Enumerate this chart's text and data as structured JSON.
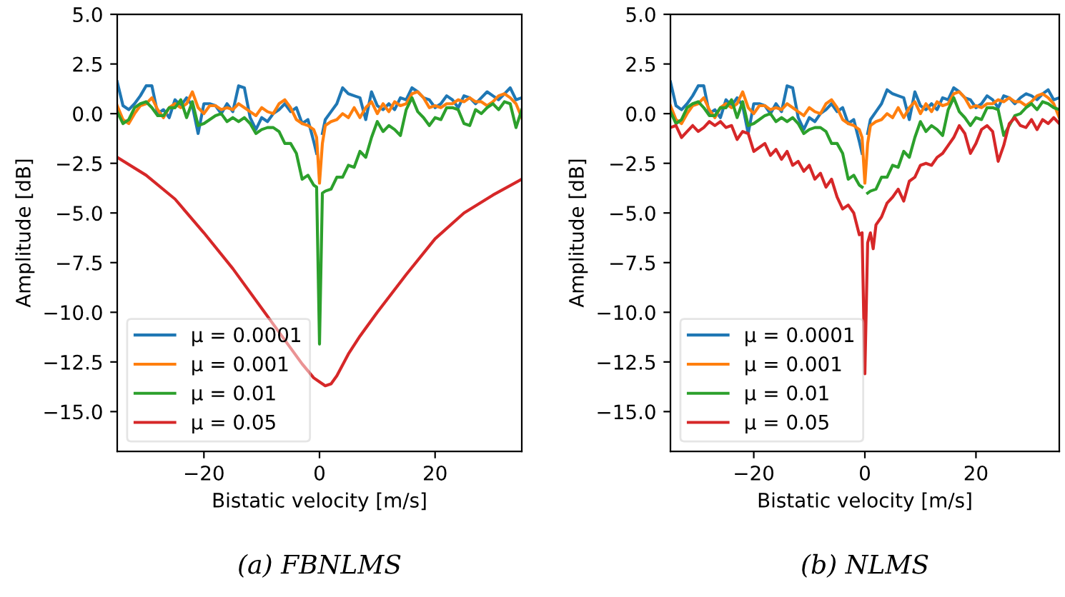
{
  "chart_data": [
    {
      "type": "line",
      "xlabel": "Bistatic velocity [m/s]",
      "ylabel": "Amplitude [dB]",
      "xlim": [
        -35,
        35
      ],
      "ylim": [
        -17,
        5
      ],
      "xticks": [
        {
          "value": -20,
          "label": "−20"
        },
        0,
        20
      ],
      "yticks": [
        {
          "value": -15,
          "label": "−15.0"
        },
        {
          "value": -12.5,
          "label": "−12.5"
        },
        {
          "value": -10,
          "label": "−10.0"
        },
        {
          "value": -7.5,
          "label": "−7.5"
        },
        {
          "value": -5,
          "label": "−5.0"
        },
        {
          "value": -2.5,
          "label": "−2.5"
        },
        {
          "value": 0,
          "label": "0.0"
        },
        {
          "value": 2.5,
          "label": "2.5"
        },
        {
          "value": 5,
          "label": "5.0"
        }
      ],
      "grid": false,
      "legend": "bottom left",
      "annotations": [
        "(a) FBNLMS"
      ],
      "series": [
        {
          "name": "μ = 0.0001",
          "color": "#1f77b4",
          "x": [
            -35,
            -34,
            -33,
            -32,
            -31,
            -30,
            -29,
            -28,
            -27,
            -26,
            -25,
            -24,
            -23,
            -22,
            -21,
            -20,
            -19,
            -18,
            -17,
            -16,
            -15,
            -14,
            -13,
            -12,
            -11,
            -10,
            -9,
            -8,
            -7,
            -6,
            -5,
            -4,
            -3,
            -2,
            -1,
            -0.5,
            0,
            0.5,
            1,
            2,
            3,
            4,
            5,
            6,
            7,
            8,
            9,
            10,
            11,
            12,
            13,
            14,
            15,
            16,
            17,
            18,
            19,
            20,
            21,
            22,
            23,
            24,
            25,
            26,
            27,
            28,
            29,
            30,
            31,
            32,
            33,
            34,
            35
          ],
          "values": [
            1.6,
            0.4,
            0.2,
            0.5,
            0.9,
            1.4,
            1.4,
            0,
            0.2,
            -0.2,
            0.7,
            0.4,
            0.8,
            0.4,
            -1.0,
            0.5,
            0.5,
            0.4,
            0,
            0.5,
            0.1,
            1.4,
            1.3,
            -0.2,
            -0.8,
            -0.2,
            -0.4,
            0,
            0.2,
            0.5,
            0.1,
            0.3,
            -0.5,
            -0.3,
            -1.4,
            -2.0,
            null,
            -1.0,
            -0.3,
            0.1,
            0.5,
            1.3,
            1.0,
            0.9,
            0.8,
            -0.3,
            1.1,
            0.4,
            0.2,
            0.5,
            0.2,
            0.8,
            0.7,
            1.3,
            1.1,
            0.8,
            0.7,
            0.3,
            0.5,
            0.9,
            0.7,
            0.3,
            0.9,
            0.8,
            0.5,
            0.8,
            1.1,
            0.9,
            0.7,
            1.0,
            1.3,
            0.7,
            0.8
          ]
        },
        {
          "name": "μ = 0.001",
          "color": "#ff7f0e",
          "x": [
            -35,
            -34,
            -33,
            -32,
            -31,
            -30,
            -29,
            -28,
            -27,
            -26,
            -25,
            -24,
            -23,
            -22,
            -21,
            -20,
            -19,
            -18,
            -17,
            -16,
            -15,
            -14,
            -13,
            -12,
            -11,
            -10,
            -9,
            -8,
            -7,
            -6,
            -5,
            -4,
            -3,
            -2,
            -1,
            -0.5,
            0,
            0.5,
            1,
            2,
            3,
            4,
            5,
            6,
            7,
            8,
            9,
            10,
            11,
            12,
            13,
            14,
            15,
            16,
            17,
            18,
            19,
            20,
            21,
            22,
            23,
            24,
            25,
            26,
            27,
            28,
            29,
            30,
            31,
            32,
            33,
            34,
            35
          ],
          "values": [
            0.4,
            -0.3,
            -0.5,
            0,
            0.4,
            0.5,
            0.8,
            0.2,
            -0.2,
            0.3,
            0.5,
            0.3,
            0.5,
            1.1,
            0.3,
            0,
            0.4,
            0.4,
            0.2,
            0.3,
            0.2,
            0.5,
            0.3,
            0.1,
            -0.1,
            0.3,
            0.1,
            0,
            0.5,
            0.7,
            0.3,
            -0.3,
            -0.5,
            -0.6,
            -0.8,
            -1.2,
            -3.5,
            -1.5,
            -0.6,
            -0.4,
            -0.3,
            0,
            -0.2,
            0.3,
            -0.2,
            0.3,
            0.6,
            0,
            0.5,
            0.1,
            0.6,
            0.4,
            0.5,
            1.0,
            1.1,
            0.8,
            0.3,
            0.4,
            0.3,
            0.5,
            0.5,
            0.7,
            0.6,
            0.8,
            0.6,
            0.6,
            0.4,
            0.6,
            0.9,
            1.0,
            0.8,
            0.5,
            -0.2
          ]
        },
        {
          "name": "μ = 0.01",
          "color": "#2ca02c",
          "x": [
            -35,
            -34,
            -33,
            -32,
            -31,
            -30,
            -29,
            -28,
            -27,
            -26,
            -25,
            -24,
            -23,
            -22,
            -21,
            -20,
            -19,
            -18,
            -17,
            -16,
            -15,
            -14,
            -13,
            -12,
            -11,
            -10,
            -9,
            -8,
            -7,
            -6,
            -5,
            -4,
            -3,
            -2,
            -1,
            -0.5,
            0,
            0.5,
            1,
            2,
            3,
            4,
            5,
            6,
            7,
            8,
            9,
            10,
            11,
            12,
            13,
            14,
            15,
            16,
            17,
            18,
            19,
            20,
            21,
            22,
            23,
            24,
            25,
            26,
            27,
            28,
            29,
            30,
            31,
            32,
            33,
            34,
            35
          ],
          "values": [
            0.1,
            -0.5,
            -0.3,
            0.3,
            0.5,
            0.6,
            0.3,
            -0.1,
            -0.1,
            0.3,
            0.3,
            0.7,
            -0.2,
            0.6,
            -0.6,
            -0.5,
            -0.3,
            -0.1,
            0,
            -0.4,
            -0.2,
            -0.4,
            -0.2,
            -0.5,
            -1.0,
            -0.8,
            -0.7,
            -0.7,
            -0.9,
            -1.5,
            -1.5,
            -2.0,
            -3.3,
            -3.1,
            -3.6,
            -3.7,
            -11.6,
            -4.0,
            -3.9,
            -3.8,
            -3.2,
            -3.2,
            -2.6,
            -2.7,
            -1.9,
            -2.2,
            -1.2,
            -0.4,
            -0.9,
            -0.6,
            -0.8,
            -1.1,
            0.2,
            0.8,
            0.1,
            -0.2,
            -0.6,
            -0.2,
            -0.3,
            0.3,
            0.3,
            0.2,
            -0.5,
            -0.6,
            0.2,
            0,
            0.3,
            0.5,
            0.2,
            0.6,
            0.5,
            -0.7,
            0.2
          ]
        },
        {
          "name": "μ = 0.05",
          "color": "#d62728",
          "x": [
            -35,
            -30,
            -25,
            -20,
            -15,
            -10,
            -7,
            -5,
            -3,
            -1,
            0,
            1,
            2,
            3,
            5,
            7,
            10,
            15,
            20,
            25,
            30,
            35
          ],
          "values": [
            -2.2,
            -3.1,
            -4.3,
            -6.0,
            -7.8,
            -9.8,
            -11.0,
            -11.8,
            -12.6,
            -13.3,
            -13.5,
            -13.7,
            -13.6,
            -13.2,
            -12.1,
            -11.2,
            -10.0,
            -8.1,
            -6.3,
            -5.0,
            -4.1,
            -3.3
          ]
        }
      ]
    },
    {
      "type": "line",
      "xlabel": "Bistatic velocity [m/s]",
      "ylabel": "Amplitude [dB]",
      "xlim": [
        -35,
        35
      ],
      "ylim": [
        -17,
        5
      ],
      "xticks": [
        {
          "value": -20,
          "label": "−20"
        },
        0,
        20
      ],
      "yticks": [
        {
          "value": -15,
          "label": "−15.0"
        },
        {
          "value": -12.5,
          "label": "−12.5"
        },
        {
          "value": -10,
          "label": "−10.0"
        },
        {
          "value": -7.5,
          "label": "−7.5"
        },
        {
          "value": -5,
          "label": "−5.0"
        },
        {
          "value": -2.5,
          "label": "−2.5"
        },
        {
          "value": 0,
          "label": "0.0"
        },
        {
          "value": 2.5,
          "label": "2.5"
        },
        {
          "value": 5,
          "label": "5.0"
        }
      ],
      "grid": false,
      "legend": "bottom left",
      "annotations": [
        "(b) NLMS"
      ],
      "series": [
        {
          "name": "μ = 0.0001",
          "color": "#1f77b4",
          "x": [
            -35,
            -34,
            -33,
            -32,
            -31,
            -30,
            -29,
            -28,
            -27,
            -26,
            -25,
            -24,
            -23,
            -22,
            -21,
            -20,
            -19,
            -18,
            -17,
            -16,
            -15,
            -14,
            -13,
            -12,
            -11,
            -10,
            -9,
            -8,
            -7,
            -6,
            -5,
            -4,
            -3,
            -2,
            -1,
            -0.5,
            0,
            0.5,
            1,
            2,
            3,
            4,
            5,
            6,
            7,
            8,
            9,
            10,
            11,
            12,
            13,
            14,
            15,
            16,
            17,
            18,
            19,
            20,
            21,
            22,
            23,
            24,
            25,
            26,
            27,
            28,
            29,
            30,
            31,
            32,
            33,
            34,
            35
          ],
          "values": [
            1.6,
            0.4,
            0.2,
            0.5,
            0.9,
            1.4,
            1.4,
            0,
            0.2,
            -0.2,
            0.7,
            0.4,
            0.8,
            0.4,
            -1.0,
            0.5,
            0.5,
            0.4,
            0,
            0.5,
            0.1,
            1.4,
            1.3,
            -0.2,
            -0.8,
            -0.2,
            -0.4,
            0,
            0.2,
            0.5,
            0.1,
            0.3,
            -0.5,
            -0.3,
            -1.4,
            -2.0,
            null,
            -1.0,
            -0.3,
            0.1,
            0.5,
            1.2,
            1.0,
            0.9,
            0.8,
            -0.3,
            1.1,
            0.4,
            0.2,
            0.5,
            0.2,
            0.8,
            0.7,
            1.3,
            1.1,
            0.8,
            0.7,
            0.3,
            0.5,
            0.9,
            0.7,
            0.3,
            0.9,
            0.8,
            0.5,
            0.8,
            1.0,
            0.9,
            0.7,
            1.0,
            1.2,
            0.7,
            0.8
          ]
        },
        {
          "name": "μ = 0.001",
          "color": "#ff7f0e",
          "x": [
            -35,
            -34,
            -33,
            -32,
            -31,
            -30,
            -29,
            -28,
            -27,
            -26,
            -25,
            -24,
            -23,
            -22,
            -21,
            -20,
            -19,
            -18,
            -17,
            -16,
            -15,
            -14,
            -13,
            -12,
            -11,
            -10,
            -9,
            -8,
            -7,
            -6,
            -5,
            -4,
            -3,
            -2,
            -1,
            -0.5,
            0,
            0.5,
            1,
            2,
            3,
            4,
            5,
            6,
            7,
            8,
            9,
            10,
            11,
            12,
            13,
            14,
            15,
            16,
            17,
            18,
            19,
            20,
            21,
            22,
            23,
            24,
            25,
            26,
            27,
            28,
            29,
            30,
            31,
            32,
            33,
            34,
            35
          ],
          "values": [
            0.4,
            -0.3,
            -0.5,
            0,
            0.4,
            0.5,
            0.8,
            0.2,
            -0.2,
            0.3,
            0.5,
            0.3,
            0.5,
            1.1,
            0.3,
            0,
            0.4,
            0.4,
            0.2,
            0.3,
            0.2,
            0.5,
            0.3,
            0.1,
            -0.1,
            0.3,
            0.1,
            0,
            0.5,
            0.7,
            0.3,
            -0.3,
            -0.5,
            -0.6,
            -0.8,
            -1.2,
            -3.5,
            -1.5,
            -0.6,
            -0.4,
            -0.3,
            0,
            -0.2,
            0.3,
            -0.2,
            0.3,
            0.6,
            0,
            0.5,
            0.1,
            0.6,
            0.4,
            0.5,
            1.0,
            1.1,
            0.8,
            0.3,
            0.4,
            0.3,
            0.5,
            0.5,
            0.7,
            0.6,
            0.8,
            0.6,
            0.6,
            0.4,
            0.6,
            0.9,
            1.0,
            0.8,
            0.5,
            -0.2
          ]
        },
        {
          "name": "μ = 0.01",
          "color": "#2ca02c",
          "x": [
            -35,
            -34,
            -33,
            -32,
            -31,
            -30,
            -29,
            -28,
            -27,
            -26,
            -25,
            -24,
            -23,
            -22,
            -21,
            -20,
            -19,
            -18,
            -17,
            -16,
            -15,
            -14,
            -13,
            -12,
            -11,
            -10,
            -9,
            -8,
            -7,
            -6,
            -5,
            -4,
            -3,
            -2,
            -1,
            -0.5,
            0,
            0.5,
            1,
            2,
            3,
            4,
            5,
            6,
            7,
            8,
            9,
            10,
            11,
            12,
            13,
            14,
            15,
            16,
            17,
            18,
            19,
            20,
            21,
            22,
            23,
            24,
            25,
            26,
            27,
            28,
            29,
            30,
            31,
            32,
            33,
            34,
            35
          ],
          "values": [
            0.1,
            -0.5,
            -0.3,
            0.3,
            0.5,
            0.6,
            0.3,
            -0.1,
            -0.1,
            0.3,
            0.3,
            0.7,
            -0.2,
            0.6,
            -0.6,
            -0.5,
            -0.3,
            -0.1,
            0,
            -0.4,
            -0.2,
            -0.4,
            -0.2,
            -0.5,
            -1.0,
            -0.8,
            -0.7,
            -0.7,
            -0.9,
            -1.5,
            -1.5,
            -2.0,
            -3.3,
            -3.1,
            -3.6,
            -3.7,
            null,
            -4.0,
            -3.9,
            -3.8,
            -3.2,
            -3.2,
            -2.6,
            -2.7,
            -1.9,
            -2.2,
            -1.2,
            -0.4,
            -0.9,
            -0.6,
            -0.8,
            -1.1,
            0.2,
            0.8,
            0.1,
            -0.2,
            -0.6,
            -0.2,
            -0.3,
            0.3,
            0.3,
            0.2,
            -1.1,
            -0.6,
            -0.1,
            0,
            0.3,
            0.5,
            0.2,
            0.6,
            0.5,
            0.3,
            0.2
          ]
        },
        {
          "name": "μ = 0.05",
          "color": "#d62728",
          "x": [
            -35,
            -34,
            -33,
            -32,
            -31,
            -30,
            -29,
            -28,
            -27,
            -26,
            -25,
            -24,
            -23,
            -22,
            -21,
            -20,
            -19,
            -18,
            -17,
            -16,
            -15,
            -14,
            -13,
            -12,
            -11,
            -10,
            -9,
            -8,
            -7,
            -6,
            -5,
            -4,
            -3,
            -2,
            -1,
            -0.5,
            0,
            0.5,
            1,
            1.5,
            2,
            3,
            4,
            5,
            6,
            7,
            8,
            9,
            10,
            11,
            12,
            13,
            14,
            15,
            16,
            17,
            18,
            19,
            20,
            21,
            22,
            23,
            24,
            25,
            26,
            27,
            28,
            29,
            30,
            31,
            32,
            33,
            34,
            35
          ],
          "values": [
            -0.7,
            -0.6,
            -1.2,
            -0.9,
            -0.6,
            -0.9,
            -0.7,
            -0.4,
            -0.6,
            -0.4,
            -0.7,
            -0.6,
            -1.3,
            -0.9,
            -1.0,
            -1.9,
            -1.7,
            -1.5,
            -2.1,
            -1.8,
            -2.3,
            -1.9,
            -2.6,
            -2.4,
            -2.9,
            -2.6,
            -3.3,
            -3.0,
            -3.7,
            -3.3,
            -4.2,
            -4.8,
            -4.6,
            -5.0,
            -6.1,
            -6.0,
            -13.1,
            -6.5,
            -6.0,
            -6.8,
            -5.6,
            -5.2,
            -4.5,
            -4.2,
            -3.8,
            -4.4,
            -3.4,
            -3.2,
            -2.6,
            -2.5,
            -2.6,
            -2.2,
            -2.0,
            -1.6,
            -1.2,
            -0.6,
            -1.0,
            -2.0,
            -1.5,
            -0.8,
            -0.6,
            -0.9,
            -2.4,
            -1.6,
            -0.5,
            -0.2,
            -0.6,
            -0.7,
            -0.3,
            -0.8,
            -0.3,
            -0.5,
            -0.2,
            -0.5
          ]
        }
      ]
    }
  ]
}
